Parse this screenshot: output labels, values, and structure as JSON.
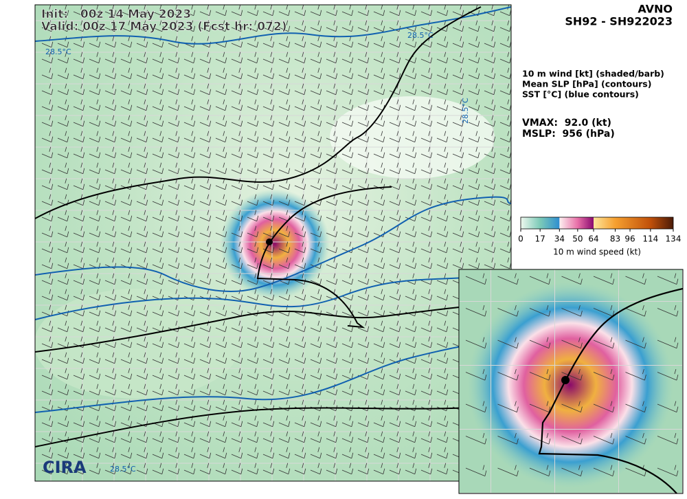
{
  "header": {
    "init": "Init:   00z 14 May 2023",
    "valid": "Valid: 00z 17 May 2023 (Fcst hr: 072)",
    "model": "AVNO",
    "storm": "SH92 - SH922023"
  },
  "legend": {
    "lines": [
      "10 m wind [kt] (shaded/barb)",
      "Mean SLP [hPa] (contours)",
      "SST [°C] (blue contours)"
    ]
  },
  "stats": {
    "vmax": "VMAX:  92.0 (kt)",
    "mslp": "MSLP:  956 (hPa)"
  },
  "colorbar": {
    "label": "10 m wind speed (kt)",
    "lim": [
      0,
      134
    ],
    "ticks": [
      0,
      17,
      34,
      50,
      64,
      83,
      96,
      114,
      134
    ]
  },
  "contour_labels": [
    "28.5°C",
    "28.5°C",
    "28.5°C",
    "28.5°C"
  ],
  "logo": "CIRA"
}
